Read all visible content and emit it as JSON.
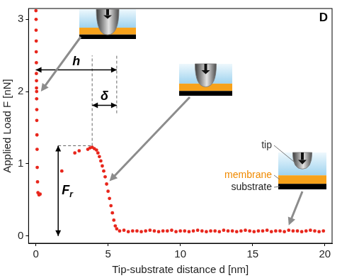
{
  "chart_data": {
    "type": "scatter",
    "panel_label": "D",
    "x_label": "Tip-substrate distance d [nm]",
    "y_label": "Applied Load F [nN]",
    "color": "#e8261c",
    "marker": "circle",
    "grid": false,
    "xlim": [
      -0.5,
      20.5
    ],
    "ylim": [
      -0.1,
      3.15
    ],
    "xticks": [
      0,
      5,
      10,
      15,
      20
    ],
    "yticks": [
      0,
      1,
      2,
      3
    ],
    "x": [
      19.9,
      19.6,
      19.3,
      19.0,
      18.7,
      18.4,
      18.1,
      17.8,
      17.5,
      17.2,
      16.9,
      16.6,
      16.3,
      16.0,
      15.7,
      15.4,
      15.1,
      14.8,
      14.5,
      14.2,
      13.9,
      13.6,
      13.3,
      13.0,
      12.7,
      12.4,
      12.1,
      11.8,
      11.5,
      11.2,
      10.9,
      10.6,
      10.3,
      10.0,
      9.7,
      9.4,
      9.1,
      8.8,
      8.5,
      8.2,
      7.9,
      7.6,
      7.3,
      7.0,
      6.7,
      6.4,
      6.1,
      5.8,
      5.6,
      5.5,
      5.4,
      5.3,
      5.2,
      5.1,
      5.0,
      4.9,
      4.8,
      4.7,
      4.6,
      4.5,
      4.4,
      4.3,
      4.2,
      4.05,
      3.9,
      3.75,
      3.6,
      3.0,
      2.7,
      1.8,
      0.3,
      0.22,
      0.15,
      0.12,
      0.1,
      0.09,
      0.08,
      0.07,
      0.07,
      0.06,
      0.06,
      0.05,
      0.05,
      0.04,
      0.04,
      0.03,
      0.03,
      0.02,
      0.02,
      0.01
    ],
    "values": [
      0.07,
      0.06,
      0.07,
      0.08,
      0.07,
      0.06,
      0.07,
      0.07,
      0.08,
      0.06,
      0.07,
      0.07,
      0.06,
      0.08,
      0.07,
      0.07,
      0.06,
      0.07,
      0.08,
      0.07,
      0.06,
      0.07,
      0.07,
      0.08,
      0.06,
      0.07,
      0.07,
      0.06,
      0.07,
      0.08,
      0.07,
      0.06,
      0.07,
      0.07,
      0.06,
      0.08,
      0.07,
      0.07,
      0.06,
      0.07,
      0.08,
      0.07,
      0.06,
      0.07,
      0.07,
      0.06,
      0.08,
      0.07,
      0.1,
      0.14,
      0.22,
      0.32,
      0.42,
      0.52,
      0.62,
      0.72,
      0.82,
      0.9,
      0.97,
      1.04,
      1.1,
      1.15,
      1.19,
      1.21,
      1.23,
      1.22,
      1.2,
      1.18,
      1.15,
      0.9,
      0.58,
      0.57,
      0.6,
      0.75,
      0.95,
      1.2,
      1.4,
      1.6,
      1.75,
      1.9,
      2.0,
      2.05,
      2.15,
      2.25,
      2.4,
      2.55,
      2.7,
      2.85,
      3.0,
      3.12
    ],
    "annotations": [
      {
        "text": "h",
        "x": [
          0,
          5.6
        ],
        "y": [
          2.3,
          2.3
        ]
      },
      {
        "text": "δ",
        "x": [
          3.9,
          5.6
        ],
        "y": [
          1.81,
          1.81
        ]
      },
      {
        "text": "F",
        "subscript": "r",
        "x": [
          1.55,
          1.55
        ],
        "y": [
          0,
          1.25
        ]
      }
    ],
    "guides": [
      {
        "x": [
          3.9,
          3.9
        ],
        "y": [
          1.25,
          2.5
        ]
      },
      {
        "x": [
          5.6,
          5.6
        ],
        "y": [
          1.7,
          2.5
        ]
      },
      {
        "x": [
          1.55,
          3.9
        ],
        "y": [
          1.25,
          1.25
        ]
      }
    ],
    "inset_labels": [
      {
        "text": "tip",
        "color": "#333333"
      },
      {
        "text": "membrane",
        "color": "#f08a00"
      },
      {
        "text": "substrate",
        "color": "#222222"
      }
    ]
  }
}
